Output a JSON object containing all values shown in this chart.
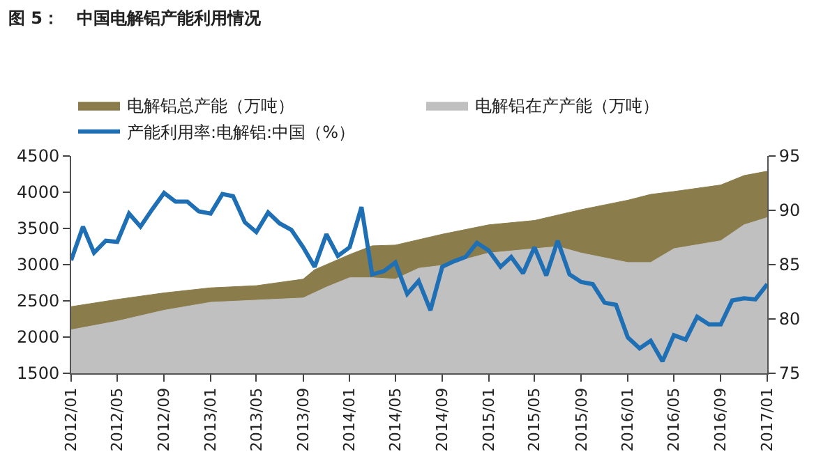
{
  "chart_data": {
    "type": "area",
    "title": "图 5：   中国电解铝产能利用情况",
    "series": [
      {
        "name": "电解铝总产能（万吨）",
        "color": "#8b7d4b",
        "x": [
          "2012-01",
          "2012-05",
          "2012-09",
          "2013-01",
          "2013-05",
          "2013-09",
          "2013-10",
          "2014-01",
          "2014-03",
          "2014-05",
          "2014-09",
          "2015-01",
          "2015-05",
          "2015-09",
          "2016-01",
          "2016-03",
          "2016-05",
          "2016-09",
          "2016-11",
          "2017-01"
        ],
        "values": [
          2420,
          2520,
          2610,
          2680,
          2710,
          2800,
          2930,
          3140,
          3260,
          3270,
          3420,
          3550,
          3610,
          3760,
          3890,
          3970,
          4010,
          4100,
          4230,
          4290
        ]
      },
      {
        "name": "电解铝在产产能（万吨）",
        "color": "#c0c0c0",
        "x": [
          "2012-01",
          "2012-05",
          "2012-09",
          "2013-01",
          "2013-05",
          "2013-09",
          "2013-11",
          "2014-01",
          "2014-03",
          "2014-05",
          "2014-07",
          "2014-09",
          "2015-01",
          "2015-05",
          "2015-07",
          "2015-09",
          "2016-01",
          "2016-03",
          "2016-05",
          "2016-09",
          "2016-11",
          "2017-01"
        ],
        "values": [
          2100,
          2220,
          2370,
          2480,
          2510,
          2540,
          2690,
          2820,
          2820,
          2800,
          2950,
          2990,
          3160,
          3220,
          3250,
          3160,
          3030,
          3030,
          3220,
          3330,
          3550,
          3650
        ]
      },
      {
        "name": "产能利用率:电解铝:中国（%）",
        "type": "line",
        "axis": "y2",
        "color": "#1f6fb4",
        "x": [
          "2012-01",
          "2012-02",
          "2012-03",
          "2012-04",
          "2012-05",
          "2012-06",
          "2012-07",
          "2012-08",
          "2012-09",
          "2012-10",
          "2012-11",
          "2012-12",
          "2013-01",
          "2013-02",
          "2013-03",
          "2013-04",
          "2013-05",
          "2013-06",
          "2013-07",
          "2013-08",
          "2013-09",
          "2013-10",
          "2013-11",
          "2013-12",
          "2014-01",
          "2014-02",
          "2014-03",
          "2014-04",
          "2014-05",
          "2014-06",
          "2014-07",
          "2014-08",
          "2014-09",
          "2014-10",
          "2014-11",
          "2014-12",
          "2015-01",
          "2015-02",
          "2015-03",
          "2015-04",
          "2015-05",
          "2015-06",
          "2015-07",
          "2015-08",
          "2015-09",
          "2015-10",
          "2015-11",
          "2015-12",
          "2016-01",
          "2016-02",
          "2016-03",
          "2016-04",
          "2016-05",
          "2016-06",
          "2016-07",
          "2016-08",
          "2016-09",
          "2016-10",
          "2016-11",
          "2016-12",
          "2017-01"
        ],
        "values": [
          85.4,
          88.5,
          86.1,
          87.2,
          87.1,
          89.7,
          88.5,
          90.1,
          91.6,
          90.8,
          90.8,
          89.9,
          89.7,
          91.5,
          91.3,
          88.9,
          88.0,
          89.8,
          88.8,
          88.2,
          86.6,
          84.8,
          87.8,
          85.8,
          86.6,
          90.3,
          84.1,
          84.4,
          85.2,
          82.3,
          83.5,
          80.8,
          84.8,
          85.3,
          85.7,
          87.0,
          86.3,
          84.8,
          85.7,
          84.2,
          86.6,
          84.0,
          87.2,
          84.1,
          83.4,
          83.2,
          81.5,
          81.3,
          78.3,
          77.3,
          78.0,
          76.1,
          78.5,
          78.1,
          80.2,
          79.5,
          79.5,
          81.7,
          81.9,
          81.8,
          83.2
        ]
      }
    ],
    "xlim": [
      "2012-01",
      "2017-01"
    ],
    "xticks": [
      {
        "value": "2012-01",
        "label": "2012/01"
      },
      {
        "value": "2012-05",
        "label": "2012/05"
      },
      {
        "value": "2012-09",
        "label": "2012/09"
      },
      {
        "value": "2013-01",
        "label": "2013/01"
      },
      {
        "value": "2013-05",
        "label": "2013/05"
      },
      {
        "value": "2013-09",
        "label": "2013/09"
      },
      {
        "value": "2014-01",
        "label": "2014/01"
      },
      {
        "value": "2014-05",
        "label": "2014/05"
      },
      {
        "value": "2014-09",
        "label": "2014/09"
      },
      {
        "value": "2015-01",
        "label": "2015/01"
      },
      {
        "value": "2015-05",
        "label": "2015/05"
      },
      {
        "value": "2015-09",
        "label": "2015/09"
      },
      {
        "value": "2016-01",
        "label": "2016/01"
      },
      {
        "value": "2016-05",
        "label": "2016/05"
      },
      {
        "value": "2016-09",
        "label": "2016/09"
      },
      {
        "value": "2017-01",
        "label": "2017/01"
      }
    ],
    "ylim": [
      1500,
      4500
    ],
    "yticks": [
      1500,
      2000,
      2500,
      3000,
      3500,
      4000,
      4500
    ],
    "y2lim": [
      75,
      95
    ],
    "y2ticks": [
      75,
      80,
      85,
      90,
      95
    ],
    "legend": "top",
    "grid": false
  }
}
